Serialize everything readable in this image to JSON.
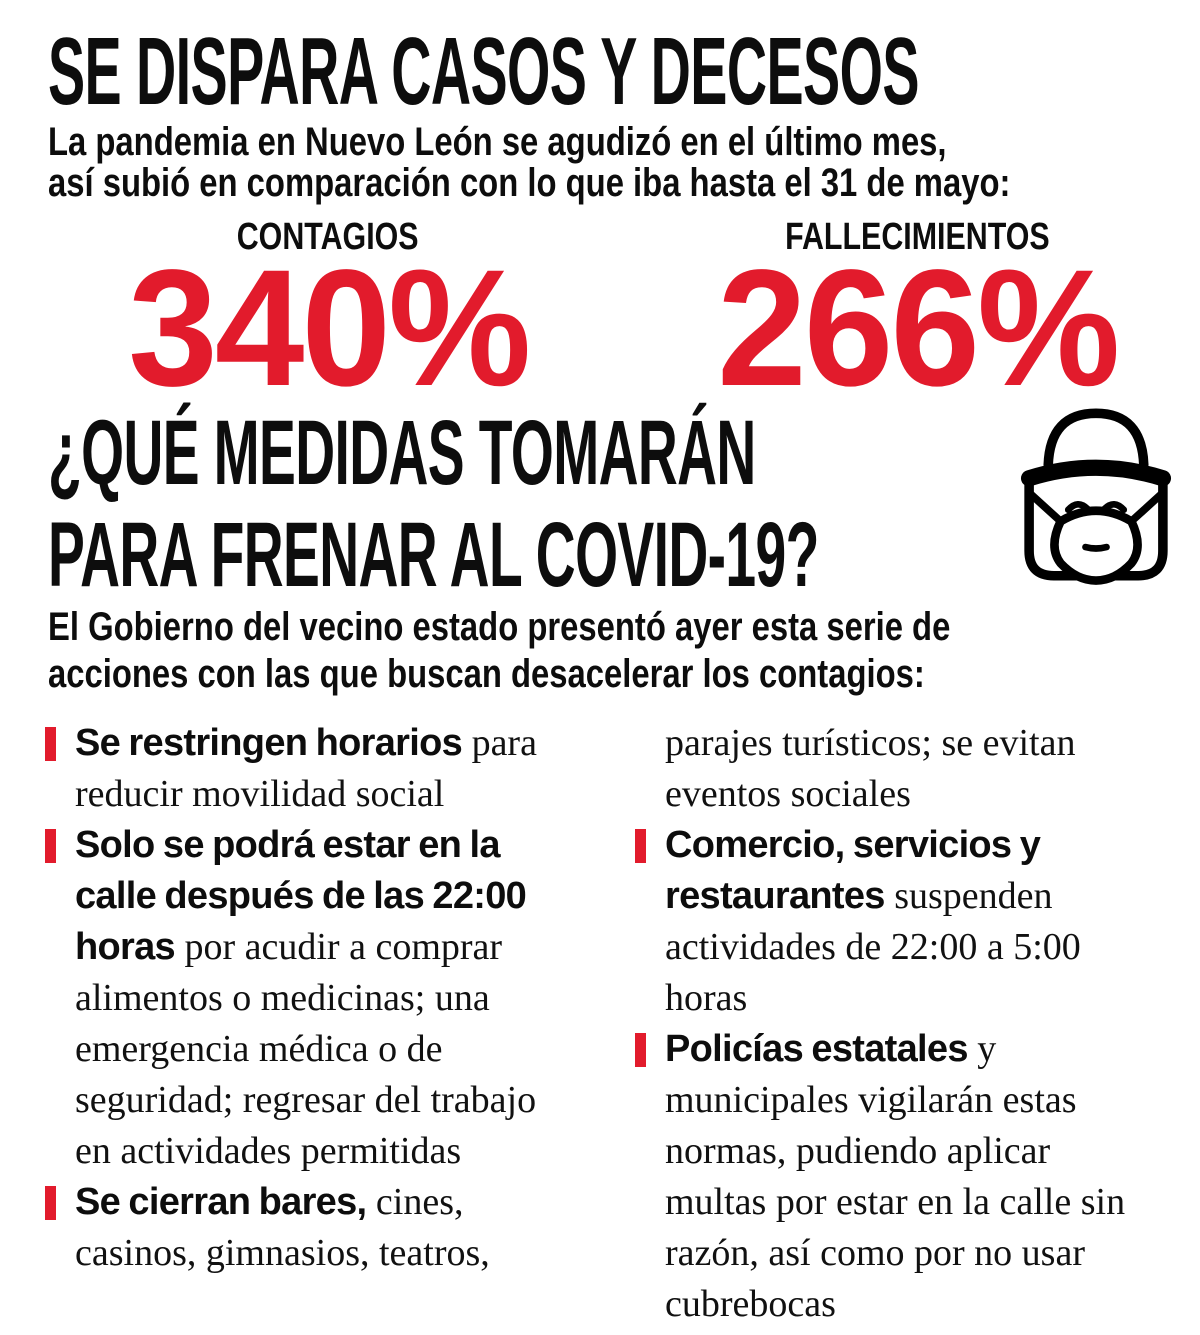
{
  "colors": {
    "accent_red": "#e21b2c",
    "ink": "#0d0d0d"
  },
  "header": {
    "title": "SE DISPARA CASOS Y DECESOS",
    "subtitle_lines": [
      "La pandemia en Nuevo León se agudizó en el último mes,",
      "así subió en comparación con lo que iba hasta el 31 de mayo:"
    ]
  },
  "stats": [
    {
      "label": "CONTAGIOS",
      "value": "340%"
    },
    {
      "label": "FALLECIMIENTOS",
      "value": "266%"
    }
  ],
  "section": {
    "headline_lines": [
      "¿QUÉ MEDIDAS TOMARÁN",
      "PARA FRENAR AL COVID-19?"
    ],
    "icon": "face-shield-mask-icon",
    "intro_lines": [
      "El Gobierno del vecino estado presentó ayer esta serie de",
      "acciones con las que buscan desacelerar los contagios:"
    ]
  },
  "measures": {
    "left_column": [
      {
        "bold": "Se restringen horarios",
        "rest": "para reducir movilidad social",
        "continuation": false
      },
      {
        "bold": "Solo se podrá estar en la calle después de las 22:00 horas",
        "rest": "por acudir a comprar alimentos o medicinas; una emergencia médica o de seguridad; regresar del trabajo en actividades permitidas",
        "continuation": false
      },
      {
        "bold": "Se cierran bares,",
        "rest": "cines, casinos, gimnasios, teatros,",
        "continuation": false
      }
    ],
    "right_column": [
      {
        "bold": "",
        "rest": "parajes turísticos; se evitan eventos sociales",
        "continuation": true
      },
      {
        "bold": "Comercio, servicios y restaurantes",
        "rest": "suspenden actividades de 22:00 a 5:00 horas",
        "continuation": false
      },
      {
        "bold": "Policías estatales",
        "rest": "y municipales vigilarán estas normas, pudiendo aplicar multas por estar en la calle sin razón, así como por no usar cubrebocas",
        "continuation": false
      }
    ]
  }
}
